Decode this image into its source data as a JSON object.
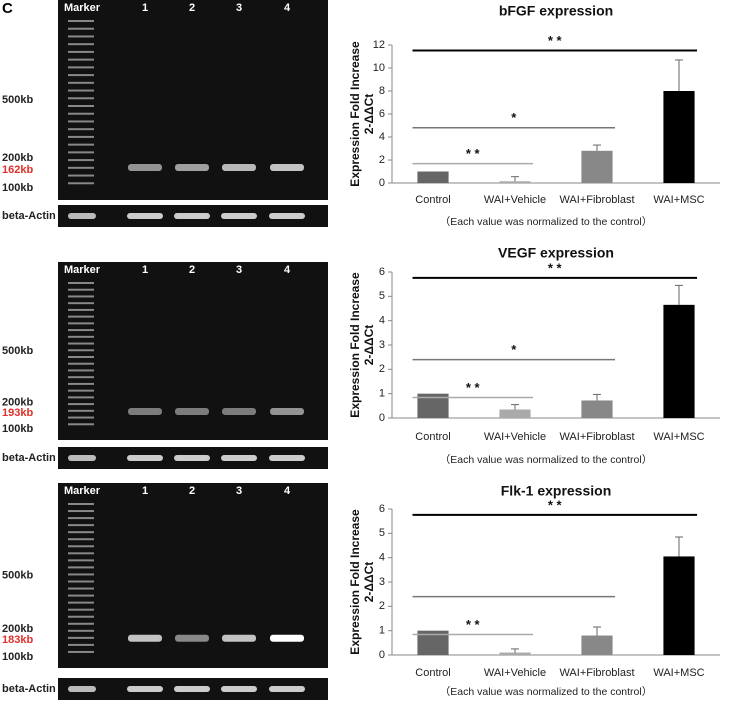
{
  "panel_label": "C",
  "gels": [
    {
      "lanes": [
        "Marker",
        "1",
        "2",
        "3",
        "4"
      ],
      "size_labels": [
        "500kb",
        "200kb",
        "162kb",
        "100kb"
      ],
      "loading_control": "beta-Actin"
    },
    {
      "lanes": [
        "Marker",
        "1",
        "2",
        "3",
        "4"
      ],
      "size_labels": [
        "500kb",
        "200kb",
        "193kb",
        "100kb"
      ],
      "loading_control": "beta-Actin"
    },
    {
      "lanes": [
        "Marker",
        "1",
        "2",
        "3",
        "4"
      ],
      "size_labels": [
        "500kb",
        "200kb",
        "183kb",
        "100kb"
      ],
      "loading_control": "beta-Actin"
    }
  ],
  "chart_data": [
    {
      "type": "bar",
      "title": "bFGF expression",
      "ylabel": [
        "Expression Fold Increase",
        "2-ΔΔCt"
      ],
      "note": "（Each value was normalized to the control）",
      "categories": [
        "Control",
        "WAI+Vehicle",
        "WAI+Fibroblast",
        "WAI+MSC"
      ],
      "values": [
        1,
        0.15,
        2.8,
        8.0
      ],
      "errors": [
        0,
        0.4,
        0.5,
        2.7
      ],
      "colors": [
        "#666666",
        "#aaaaaa",
        "#888888",
        "#000000"
      ],
      "ylim": [
        0,
        12
      ],
      "yticks": [
        0,
        2,
        4,
        6,
        8,
        10,
        12
      ],
      "annotations": [
        {
          "text": "* *",
          "from": 0,
          "to": 1,
          "color": "#aaaaaa"
        },
        {
          "text": "*",
          "from": 0,
          "to": 2,
          "color": "#777777"
        },
        {
          "text": "* *",
          "from": 0,
          "to": 3,
          "color": "#000000"
        }
      ]
    },
    {
      "type": "bar",
      "title": "VEGF expression",
      "ylabel": [
        "Expression Fold Increase",
        "2-ΔΔCt"
      ],
      "note": "（Each value was normalized to the control）",
      "categories": [
        "Control",
        "WAI+Vehicle",
        "WAI+Fibroblast",
        "WAI+MSC"
      ],
      "values": [
        1,
        0.35,
        0.72,
        4.65
      ],
      "errors": [
        0,
        0.2,
        0.25,
        0.8
      ],
      "colors": [
        "#666666",
        "#aaaaaa",
        "#888888",
        "#000000"
      ],
      "ylim": [
        0,
        6
      ],
      "yticks": [
        0,
        1,
        2,
        3,
        4,
        5,
        6
      ],
      "annotations": [
        {
          "text": "* *",
          "from": 0,
          "to": 1,
          "color": "#aaaaaa"
        },
        {
          "text": "*",
          "from": 0,
          "to": 2,
          "color": "#777777"
        },
        {
          "text": "* *",
          "from": 0,
          "to": 3,
          "color": "#000000"
        }
      ]
    },
    {
      "type": "bar",
      "title": "Flk-1 expression",
      "ylabel": [
        "Expression Fold Increase",
        "2-ΔΔCt"
      ],
      "note": "（Each value was normalized to the control）",
      "categories": [
        "Control",
        "WAI+Vehicle",
        "WAI+Fibroblast",
        "WAI+MSC"
      ],
      "values": [
        1,
        0.1,
        0.8,
        4.05
      ],
      "errors": [
        0,
        0.15,
        0.35,
        0.8
      ],
      "colors": [
        "#666666",
        "#aaaaaa",
        "#888888",
        "#000000"
      ],
      "ylim": [
        0,
        6
      ],
      "yticks": [
        0,
        1,
        2,
        3,
        4,
        5,
        6
      ],
      "annotations": [
        {
          "text": "* *",
          "from": 0,
          "to": 1,
          "color": "#aaaaaa"
        },
        {
          "text": "",
          "from": 0,
          "to": 2,
          "color": "#777777"
        },
        {
          "text": "* *",
          "from": 0,
          "to": 3,
          "color": "#000000"
        }
      ]
    }
  ]
}
